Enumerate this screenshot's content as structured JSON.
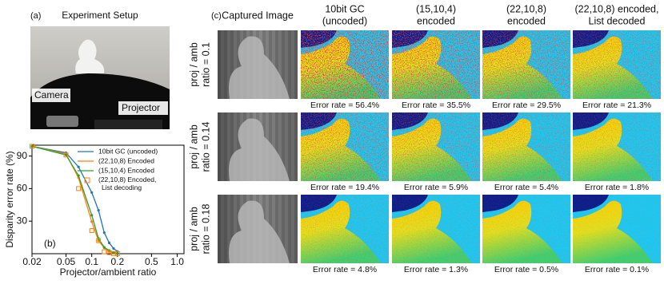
{
  "panel_a": {
    "label": "(a)",
    "title": "Experiment Setup",
    "camera_label": "Camera",
    "projector_label": "Projector"
  },
  "panel_b": {
    "label": "(b)"
  },
  "chart_data": {
    "type": "line",
    "x_label": "Projector/ambient ratio",
    "y_label": "Disparity error rate (%)",
    "x_log": true,
    "x": [
      0.02,
      0.05,
      0.07,
      0.1,
      0.12,
      0.14,
      0.16,
      0.18,
      0.2
    ],
    "xlim": [
      0.02,
      1.2
    ],
    "xticks": [
      0.02,
      0.05,
      0.1,
      0.2,
      0.5,
      {
        "value": 1,
        "label": "1.0"
      }
    ],
    "ylim": [
      0,
      100
    ],
    "yticks": [
      30,
      60,
      90
    ],
    "series": [
      {
        "name": "10bit GC (uncoded)",
        "color": "#1f77b4",
        "style": "line",
        "values": [
          99,
          93,
          80,
          56.4,
          40,
          19.4,
          10,
          4.8,
          2
        ]
      },
      {
        "name": "(22,10,8) Encoded",
        "color": "#ff7f0e",
        "style": "line",
        "values": [
          99,
          92,
          70,
          29.5,
          12,
          5.4,
          2,
          0.5,
          0
        ]
      },
      {
        "name": "(15,10,4) Encoded",
        "color": "#2ca02c",
        "style": "line",
        "values": [
          99,
          91,
          72,
          35.5,
          14,
          5.9,
          3,
          1.3,
          0
        ]
      },
      {
        "name": "(22,10,8) Encoded, List decoding",
        "color": "#ff7f0e",
        "style": "markers",
        "values": [
          99,
          91,
          60,
          21.3,
          12,
          1.8,
          1,
          0.1,
          0
        ]
      }
    ]
  },
  "panel_c": {
    "label": "(c)",
    "columns": [
      [
        "Captured Image"
      ],
      [
        "10bit GC",
        "(uncoded)"
      ],
      [
        "(15,10,4)",
        "encoded"
      ],
      [
        "(22,10,8)",
        "encoded"
      ],
      [
        "(22,10,8) encoded,",
        "List decoded"
      ]
    ],
    "rows": [
      {
        "label": [
          "proj / amb",
          "ratio = 0.1"
        ],
        "error_rates": [
          "Error rate = 56.4%",
          "Error rate = 35.5%",
          "Error rate = 29.5%",
          "Error rate = 21.3%"
        ]
      },
      {
        "label": [
          "proj / amb",
          "ratio = 0.14"
        ],
        "error_rates": [
          "Error rate = 19.4%",
          "Error rate = 5.9%",
          "Error rate = 5.4%",
          "Error rate = 1.8%"
        ]
      },
      {
        "label": [
          "proj / amb",
          "ratio = 0.18"
        ],
        "error_rates": [
          "Error rate = 4.8%",
          "Error rate = 1.3%",
          "Error rate = 0.5%",
          "Error rate = 0.1%"
        ]
      }
    ]
  }
}
